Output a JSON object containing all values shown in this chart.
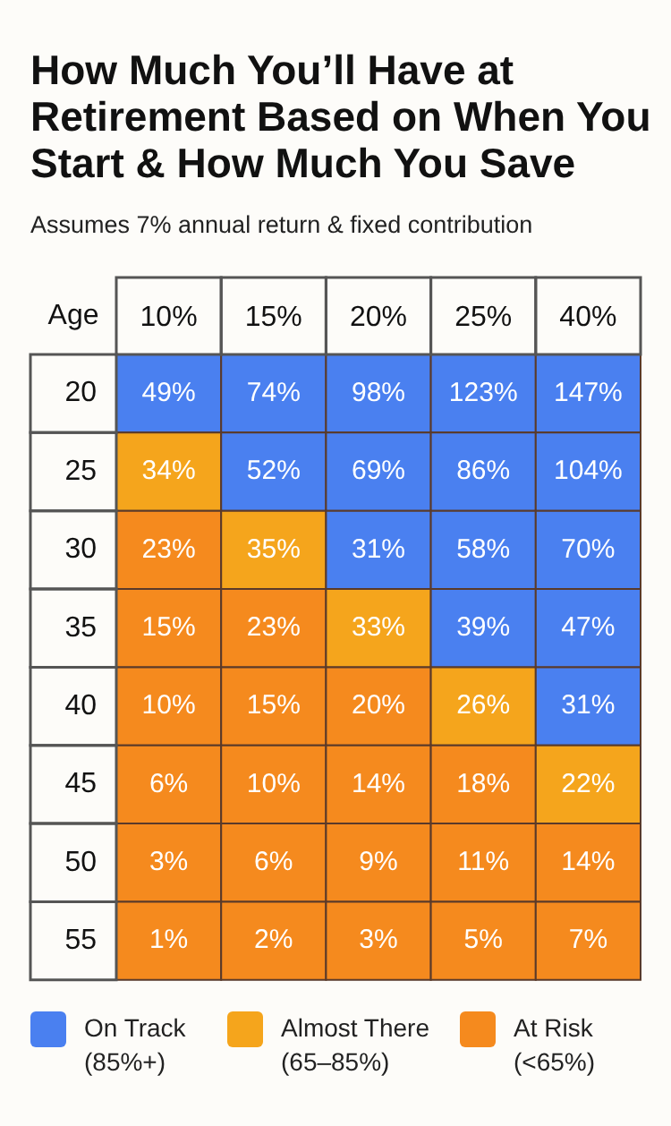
{
  "chart_data": {
    "type": "heatmap",
    "title": "How Much You’ll Have at Retirement Based on When You Start & How Much You Save",
    "subtitle": "Assumes 7% annual return & fixed contribution",
    "ylabel": "Age",
    "categories": [
      "10%",
      "15%",
      "20%",
      "25%",
      "40%"
    ],
    "y_categories": [
      "20",
      "25",
      "30",
      "35",
      "40",
      "45",
      "50",
      "55"
    ],
    "cells": [
      [
        49,
        74,
        98,
        123,
        147
      ],
      [
        34,
        52,
        69,
        86,
        104
      ],
      [
        23,
        35,
        31,
        58,
        70
      ],
      [
        15,
        23,
        33,
        39,
        47
      ],
      [
        10,
        15,
        20,
        26,
        31
      ],
      [
        6,
        10,
        14,
        18,
        22
      ],
      [
        3,
        6,
        9,
        11,
        14
      ],
      [
        1,
        2,
        3,
        5,
        7
      ]
    ],
    "cell_labels": [
      [
        "49%",
        "74%",
        "98%",
        "123%",
        "147%"
      ],
      [
        "34%",
        "52%",
        "69%",
        "86%",
        "104%"
      ],
      [
        "23%",
        "35%",
        "31%",
        "58%",
        "70%"
      ],
      [
        "15%",
        "23%",
        "33%",
        "39%",
        "47%"
      ],
      [
        "10%",
        "15%",
        "20%",
        "26%",
        "31%"
      ],
      [
        "6%",
        "10%",
        "14%",
        "18%",
        "22%"
      ],
      [
        "3%",
        "6%",
        "9%",
        "11%",
        "14%"
      ],
      [
        "1%",
        "2%",
        "3%",
        "5%",
        "7%"
      ]
    ],
    "colors": [
      [
        "#4a80f0",
        "#4a80f0",
        "#4a80f0",
        "#4a80f0",
        "#4a80f0"
      ],
      [
        "#f5a51c",
        "#4a80f0",
        "#4a80f0",
        "#4a80f0",
        "#4a80f0"
      ],
      [
        "#f58a1e",
        "#f5a51c",
        "#4a80f0",
        "#4a80f0",
        "#4a80f0"
      ],
      [
        "#f58a1e",
        "#f58a1e",
        "#f5a51c",
        "#4a80f0",
        "#4a80f0"
      ],
      [
        "#f58a1e",
        "#f58a1e",
        "#f58a1e",
        "#f5a51c",
        "#4a80f0"
      ],
      [
        "#f58a1e",
        "#f58a1e",
        "#f58a1e",
        "#f58a1e",
        "#f5a51c"
      ],
      [
        "#f58a1e",
        "#f58a1e",
        "#f58a1e",
        "#f58a1e",
        "#f58a1e"
      ],
      [
        "#f58a1e",
        "#f58a1e",
        "#f58a1e",
        "#f58a1e",
        "#f58a1e"
      ]
    ],
    "annotations": [
      "On Track (85%+)",
      "Almost There (65–85%)",
      "At Risk (<65%)"
    ]
  }
}
